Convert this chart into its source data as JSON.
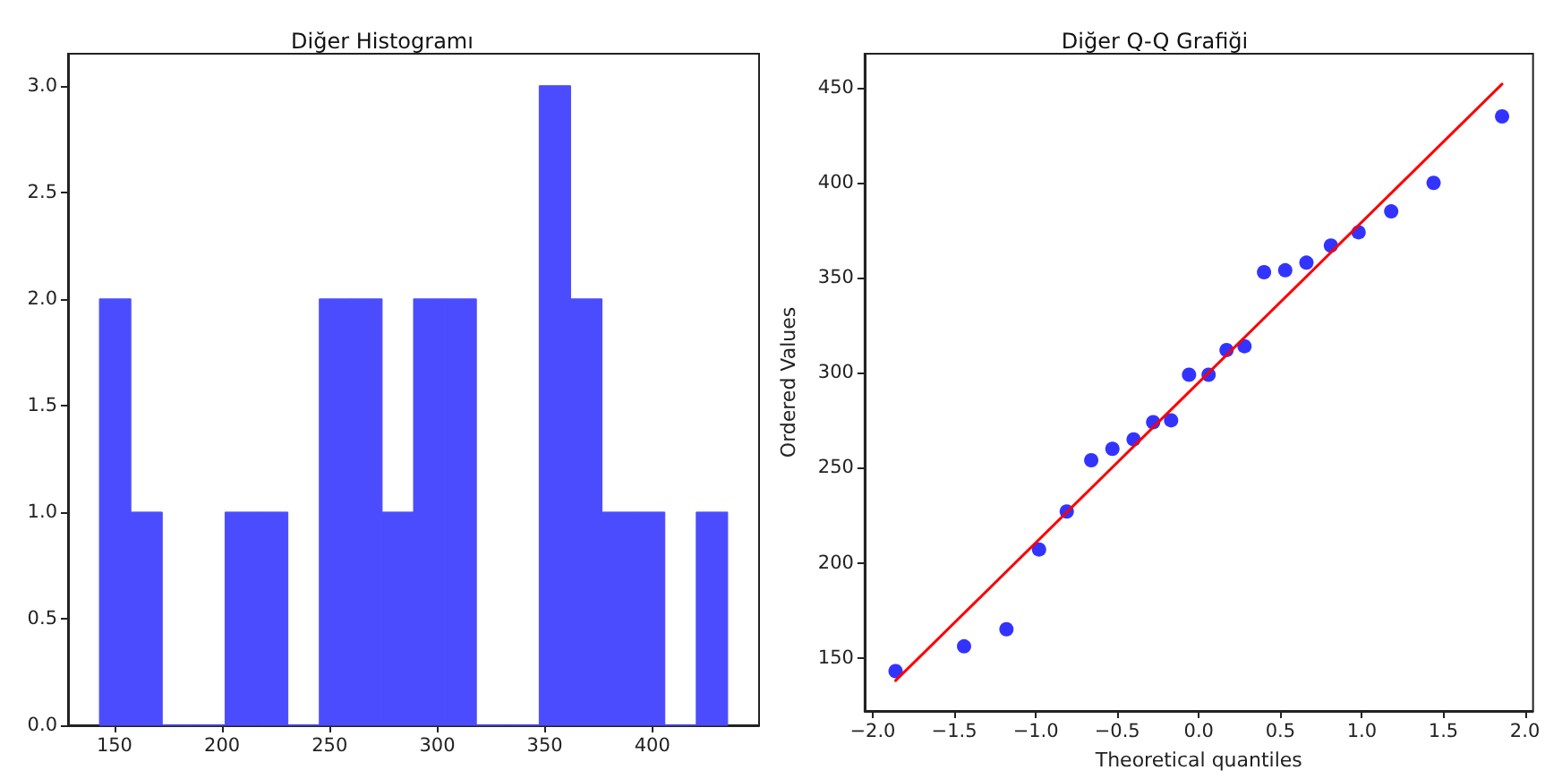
{
  "chart_data": [
    {
      "type": "histogram",
      "title": "Diğer Histogramı",
      "color": "#4c4cff",
      "bins": [
        143,
        157.6,
        172.2,
        186.8,
        201.4,
        216,
        230.6,
        245.2,
        259.8,
        274.4,
        289,
        303.6,
        318.2,
        332.8,
        347.4,
        362,
        376.6,
        391.2,
        405.8,
        420.4,
        435
      ],
      "values": [
        2,
        1,
        0,
        0,
        1,
        1,
        0,
        2,
        2,
        1,
        2,
        2,
        0,
        0,
        3,
        2,
        1,
        1,
        0,
        1
      ],
      "xlim": [
        128.4,
        449.6
      ],
      "ylim": [
        0,
        3.15
      ],
      "xticks": [
        150,
        200,
        250,
        300,
        350,
        400
      ],
      "yticks": [
        {
          "value": 0,
          "label": "0.0"
        },
        {
          "value": 0.5,
          "label": "0.5"
        },
        {
          "value": 1,
          "label": "1.0"
        },
        {
          "value": 1.5,
          "label": "1.5"
        },
        {
          "value": 2,
          "label": "2.0"
        },
        {
          "value": 2.5,
          "label": "2.5"
        },
        {
          "value": 3,
          "label": "3.0"
        }
      ]
    },
    {
      "type": "scatter",
      "title": "Diğer Q-Q Grafiği",
      "xlabel": "Theoretical quantiles",
      "ylabel": "Ordered Values",
      "series": [
        {
          "type": "scatter",
          "color": "#0000ff",
          "marker": "circle",
          "x": [
            -1.86,
            -1.44,
            -1.18,
            -0.98,
            -0.81,
            -0.66,
            -0.53,
            -0.4,
            -0.28,
            -0.17,
            -0.06,
            0.06,
            0.17,
            0.28,
            0.4,
            0.53,
            0.66,
            0.81,
            0.98,
            1.18,
            1.44,
            1.86
          ],
          "values": [
            143,
            156,
            165,
            207,
            227,
            254,
            260,
            265,
            274,
            275,
            299,
            299,
            312,
            314,
            353,
            354,
            358,
            367,
            374,
            385,
            400,
            435
          ]
        },
        {
          "type": "line",
          "color": "#ff0000",
          "marker": "none",
          "line_style": "solid",
          "x": [
            -1.86,
            1.86
          ],
          "values": [
            138,
            452
          ]
        }
      ],
      "xlim": [
        -2.05,
        2.05
      ],
      "ylim": [
        122,
        468
      ],
      "xticks": [
        {
          "value": -2,
          "label": "−2.0"
        },
        {
          "value": -1.5,
          "label": "−1.5"
        },
        {
          "value": -1,
          "label": "−1.0"
        },
        {
          "value": -0.5,
          "label": "−0.5"
        },
        {
          "value": 0,
          "label": "0.0"
        },
        {
          "value": 0.5,
          "label": "0.5"
        },
        {
          "value": 1,
          "label": "1.0"
        },
        {
          "value": 1.5,
          "label": "1.5"
        },
        {
          "value": 2,
          "label": "2.0"
        }
      ],
      "yticks": [
        150,
        200,
        250,
        300,
        350,
        400,
        450
      ]
    }
  ]
}
